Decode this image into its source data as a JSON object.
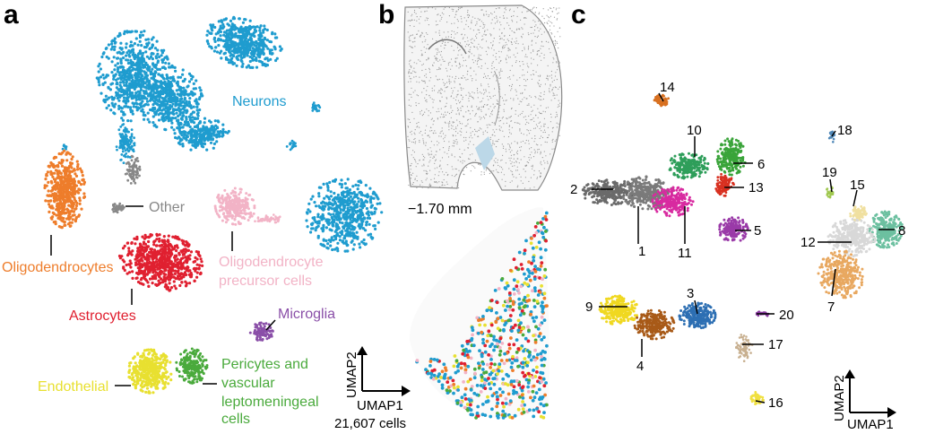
{
  "panels": {
    "a": "a",
    "b": "b",
    "c": "c"
  },
  "colors": {
    "neurons": "#1f9ccf",
    "other": "#888888",
    "oligodendrocytes": "#ee7d2b",
    "astrocytes": "#e02030",
    "opc": "#f2b3c6",
    "microglia": "#8a4fa8",
    "endothelial": "#e8e030",
    "pericytes": "#4aaa3c",
    "c1": "#7a7a7a",
    "c2": "#6a6a6a",
    "c3": "#2d6fb3",
    "c4": "#a85a18",
    "c5": "#9a3aa8",
    "c6": "#3aa43a",
    "c7": "#e8a860",
    "c8": "#6cc0a0",
    "c9": "#f0d820",
    "c10": "#2e9e5a",
    "c11": "#d82aa0",
    "c12": "#d8d8d8",
    "c13": "#d83020",
    "c14": "#d87020",
    "c15": "#f0e0a0",
    "c16": "#f0e040",
    "c17": "#c8b090",
    "c18": "#5088b8",
    "c19": "#a0c850",
    "c20": "#8a3aa0"
  },
  "panel_a": {
    "labels": {
      "neurons": "Neurons",
      "other": "Other",
      "oligodendrocytes": "Oligodendrocytes",
      "opc_line1": "Oligodendrocyte",
      "opc_line2": "precursor cells",
      "astrocytes": "Astrocytes",
      "microglia": "Microglia",
      "endothelial": "Endothelial",
      "pericytes_line1": "Pericytes and",
      "pericytes_line2": "vascular",
      "pericytes_line3": "leptomeningeal",
      "pericytes_line4": "cells"
    },
    "axis_y": "UMAP2",
    "axis_x": "UMAP1",
    "cell_count": "21,607 cells"
  },
  "panel_b": {
    "section_label": "−1.70 mm"
  },
  "panel_c": {
    "cluster_labels": [
      "1",
      "2",
      "3",
      "4",
      "5",
      "6",
      "7",
      "8",
      "9",
      "10",
      "11",
      "12",
      "13",
      "14",
      "15",
      "16",
      "17",
      "18",
      "19",
      "20"
    ],
    "axis_y": "UMAP2",
    "axis_x": "UMAP1"
  }
}
